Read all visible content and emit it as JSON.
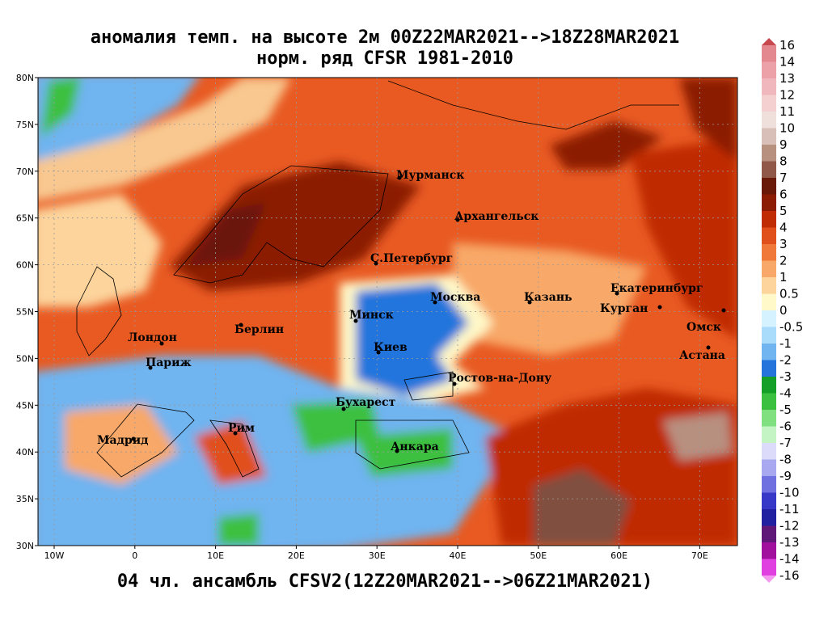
{
  "header": {
    "title": [
      "аномалия темп. на высоте 2м 00Z22MAR2021-->18Z28MAR2021",
      "норм. ряд CFSR 1981-2010"
    ],
    "caption": "04 чл. ансамбль CFSV2(12Z20MAR2021-->06Z21MAR2021)"
  },
  "map": {
    "lat_ticks": [
      "80N",
      "75N",
      "70N",
      "65N",
      "60N",
      "55N",
      "50N",
      "45N",
      "40N",
      "35N",
      "30N"
    ],
    "lon_ticks": [
      "10W",
      "0",
      "10E",
      "20E",
      "30E",
      "40E",
      "50E",
      "60E",
      "70E"
    ],
    "cities": [
      "Мурманск",
      "Архангельск",
      "С.Петербург",
      "Москва",
      "Казань",
      "Екатеринбург",
      "Курган",
      "Омск",
      "Астана",
      "Минск",
      "Киев",
      "Берлин",
      "Лондон",
      "Париж",
      "Ростов-на-Дону",
      "Бухарест",
      "Рим",
      "Мадрид",
      "Анкара"
    ]
  },
  "colorbar": {
    "levels": [
      16,
      14,
      13,
      12,
      11,
      10,
      9,
      8,
      7,
      6,
      5,
      4,
      3,
      2,
      1,
      0.5,
      0,
      -0.5,
      -1,
      -2,
      -3,
      -4,
      -5,
      -6,
      -7,
      -8,
      -9,
      -10,
      -11,
      -12,
      -13,
      -14,
      -16
    ],
    "colors": [
      "#c84850",
      "#e48890",
      "#eca0a8",
      "#f0b8bc",
      "#f4d0d0",
      "#f0e0dc",
      "#d8c0b8",
      "#b89080",
      "#905848",
      "#6a1808",
      "#8c1c04",
      "#c02c04",
      "#e0501c",
      "#f07838",
      "#f8a868",
      "#fcd49c",
      "#fff8c8",
      "#d4f2ff",
      "#a8dcfa",
      "#70b4f0",
      "#2474dc",
      "#14a028",
      "#3cc040",
      "#80e080",
      "#c4f4c4",
      "#dcdcfa",
      "#a8a8f0",
      "#7070e0",
      "#3838c8",
      "#2020a0",
      "#601878",
      "#a0109c",
      "#e040e0",
      "#f498f0"
    ]
  }
}
